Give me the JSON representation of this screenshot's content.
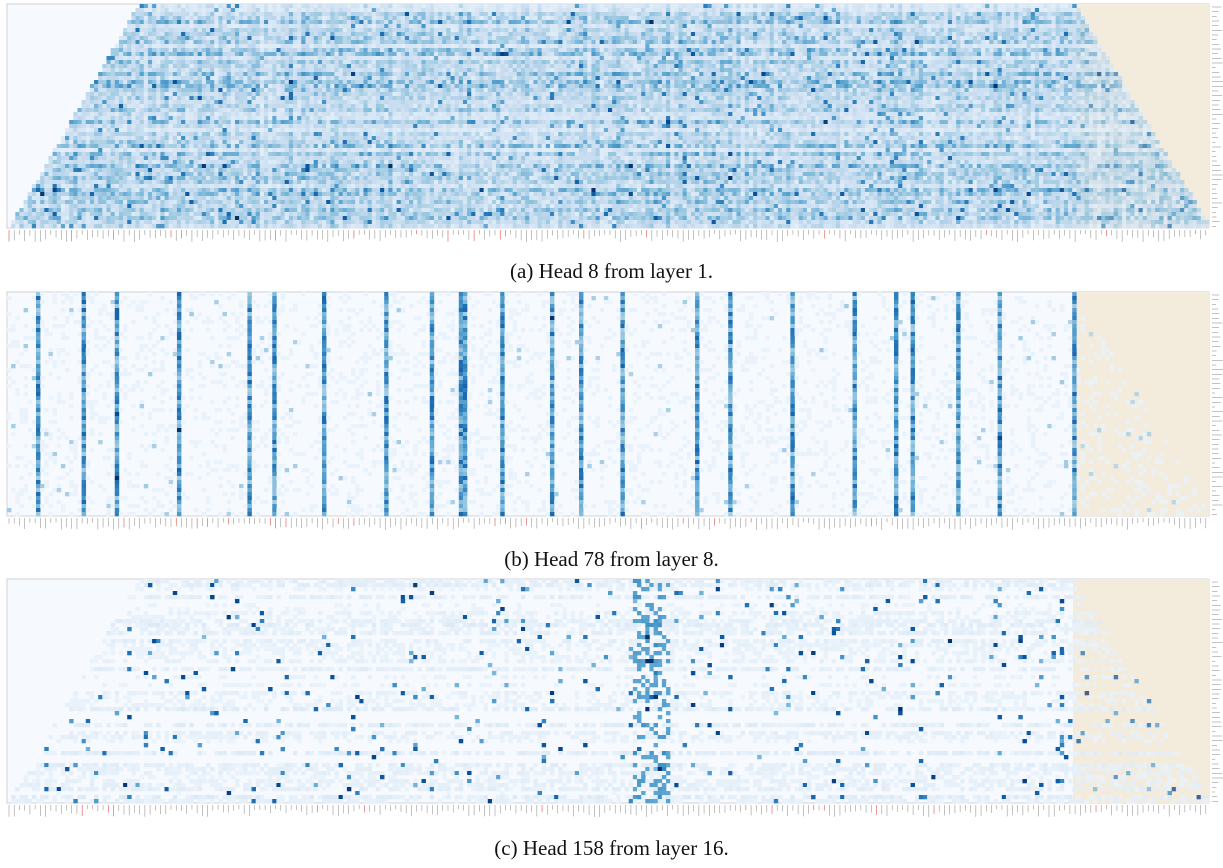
{
  "figure": {
    "captions": [
      "(a) Head 8 from layer 1.",
      "(b) Head 78 from layer 8.",
      "(c) Head 158 from layer 16."
    ]
  },
  "chart_data": [
    {
      "type": "heatmap",
      "title": "(a) Head 8 from layer 1.",
      "colormap": "Blues",
      "highlight_region_color": "#f3ebdc",
      "grid": false,
      "pattern": "causal attention mask (upper-left triangle empty), dense horizontal banding",
      "key_tick_label_accent_color": "#e05050"
    },
    {
      "type": "heatmap",
      "title": "(b) Head 78 from layer 8.",
      "colormap": "Blues",
      "highlight_region_color": "#f3ebdc",
      "grid": false,
      "pattern": "sparse vertical attention stripes",
      "key_tick_label_accent_color": "#e05050"
    },
    {
      "type": "heatmap",
      "title": "(c) Head 158 from layer 16.",
      "colormap": "Blues",
      "highlight_region_color": "#f3ebdc",
      "grid": false,
      "pattern": "causal attention mask, scattered dots with clustered columns",
      "key_tick_label_accent_color": "#e05050"
    }
  ]
}
